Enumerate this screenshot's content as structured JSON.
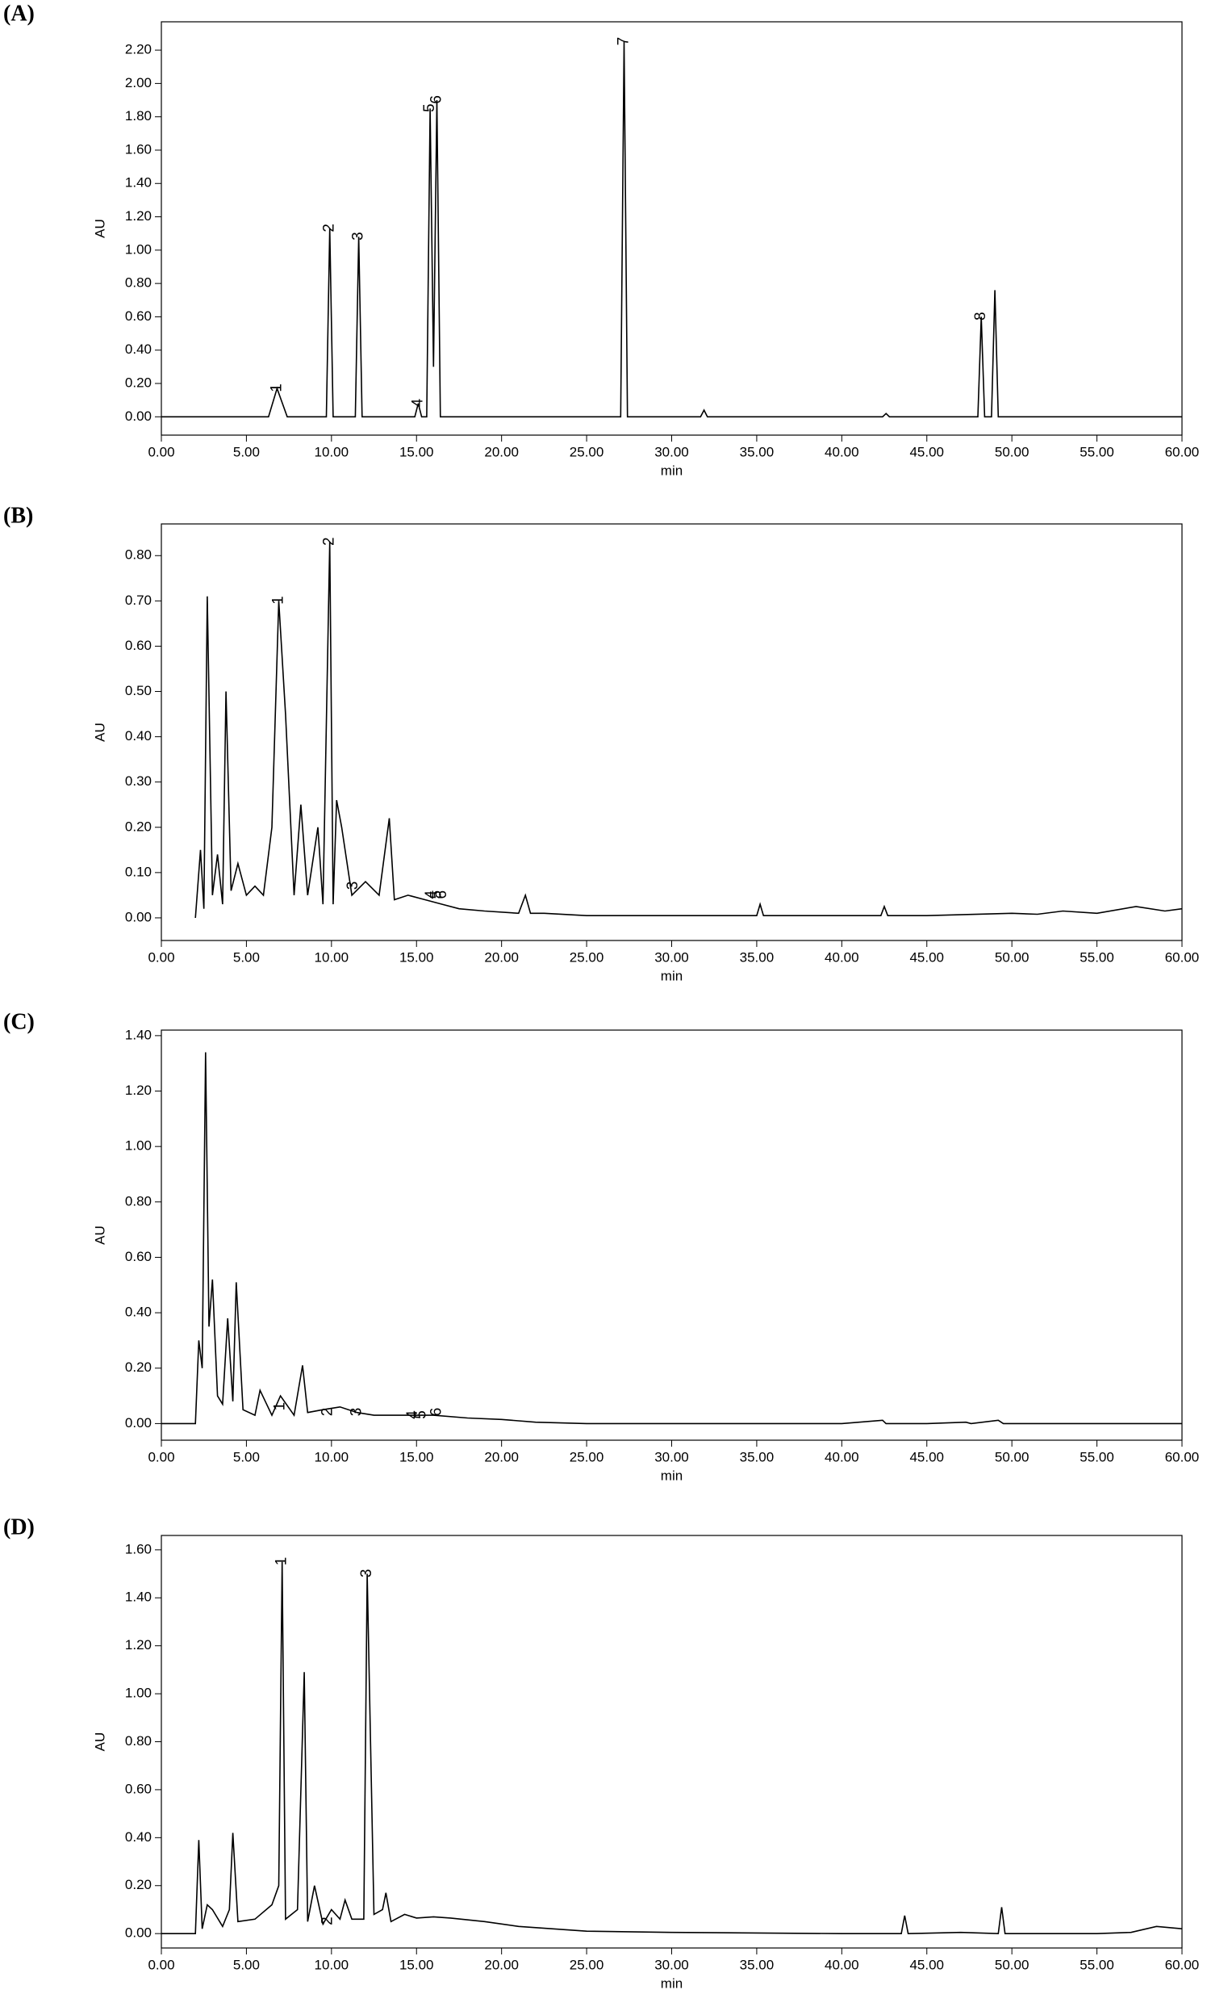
{
  "chart_data": [
    {
      "type": "line",
      "panel_label": "(A)",
      "x_label": "min",
      "y_label": "AU",
      "color": "#000000",
      "xlim": [
        0,
        60
      ],
      "ylim": [
        -0.11,
        2.37
      ],
      "xticks": [
        {
          "value": 0,
          "label": "0.00"
        },
        {
          "value": 5,
          "label": "5.00"
        },
        {
          "value": 10,
          "label": "10.00"
        },
        {
          "value": 15,
          "label": "15.00"
        },
        {
          "value": 20,
          "label": "20.00"
        },
        {
          "value": 25,
          "label": "25.00"
        },
        {
          "value": 30,
          "label": "30.00"
        },
        {
          "value": 35,
          "label": "35.00"
        },
        {
          "value": 40,
          "label": "40.00"
        },
        {
          "value": 45,
          "label": "45.00"
        },
        {
          "value": 50,
          "label": "50.00"
        },
        {
          "value": 55,
          "label": "55.00"
        },
        {
          "value": 60,
          "label": "60.00"
        }
      ],
      "yticks": [
        {
          "value": 0,
          "label": "0.00"
        },
        {
          "value": 0.2,
          "label": "0.20"
        },
        {
          "value": 0.4,
          "label": "0.40"
        },
        {
          "value": 0.6,
          "label": "0.60"
        },
        {
          "value": 0.8,
          "label": "0.80"
        },
        {
          "value": 1,
          "label": "1.00"
        },
        {
          "value": 1.2,
          "label": "1.20"
        },
        {
          "value": 1.4,
          "label": "1.40"
        },
        {
          "value": 1.6,
          "label": "1.60"
        },
        {
          "value": 1.8,
          "label": "1.80"
        },
        {
          "value": 2,
          "label": "2.00"
        },
        {
          "value": 2.2,
          "label": "2.20"
        }
      ],
      "x": [
        0,
        6.3,
        6.8,
        7.4,
        9.7,
        9.9,
        10.1,
        11.4,
        11.6,
        11.8,
        14.9,
        15.1,
        15.3,
        15.6,
        15.8,
        16.0,
        16.2,
        16.4,
        27.0,
        27.2,
        27.4,
        31.7,
        31.9,
        32.1,
        42.4,
        42.6,
        42.8,
        48.0,
        48.2,
        48.4,
        48.8,
        49.0,
        49.2,
        60
      ],
      "values": [
        0,
        0,
        0.17,
        0,
        0,
        1.13,
        0,
        0,
        1.08,
        0,
        0,
        0.08,
        0,
        0,
        1.85,
        0.3,
        1.9,
        0,
        0,
        2.25,
        0,
        0,
        0.04,
        0,
        0,
        0.02,
        0,
        0,
        0.6,
        0,
        0,
        0.76,
        0,
        0
      ],
      "peaks": [
        {
          "label": "1",
          "x": 6.8,
          "y": 0.17
        },
        {
          "label": "2",
          "x": 9.9,
          "y": 1.13
        },
        {
          "label": "3",
          "x": 11.6,
          "y": 1.08
        },
        {
          "label": "4",
          "x": 15.1,
          "y": 0.08
        },
        {
          "label": "5",
          "x": 15.8,
          "y": 1.85
        },
        {
          "label": "6",
          "x": 16.2,
          "y": 1.9
        },
        {
          "label": "7",
          "x": 27.2,
          "y": 2.25
        },
        {
          "label": "8",
          "x": 48.2,
          "y": 0.6
        }
      ]
    },
    {
      "type": "line",
      "panel_label": "(B)",
      "x_label": "min",
      "y_label": "AU",
      "color": "#000000",
      "xlim": [
        0,
        60
      ],
      "ylim": [
        -0.05,
        0.87
      ],
      "xticks": [
        {
          "value": 0,
          "label": "0.00"
        },
        {
          "value": 5,
          "label": "5.00"
        },
        {
          "value": 10,
          "label": "10.00"
        },
        {
          "value": 15,
          "label": "15.00"
        },
        {
          "value": 20,
          "label": "20.00"
        },
        {
          "value": 25,
          "label": "25.00"
        },
        {
          "value": 30,
          "label": "30.00"
        },
        {
          "value": 35,
          "label": "35.00"
        },
        {
          "value": 40,
          "label": "40.00"
        },
        {
          "value": 45,
          "label": "45.00"
        },
        {
          "value": 50,
          "label": "50.00"
        },
        {
          "value": 55,
          "label": "55.00"
        },
        {
          "value": 60,
          "label": "60.00"
        }
      ],
      "yticks": [
        {
          "value": 0,
          "label": "0.00"
        },
        {
          "value": 0.1,
          "label": "0.10"
        },
        {
          "value": 0.2,
          "label": "0.20"
        },
        {
          "value": 0.3,
          "label": "0.30"
        },
        {
          "value": 0.4,
          "label": "0.40"
        },
        {
          "value": 0.5,
          "label": "0.50"
        },
        {
          "value": 0.6,
          "label": "0.60"
        },
        {
          "value": 0.7,
          "label": "0.70"
        },
        {
          "value": 0.8,
          "label": "0.80"
        }
      ],
      "x": [
        2,
        2.3,
        2.5,
        2.7,
        3.0,
        3.3,
        3.6,
        3.8,
        4.1,
        4.5,
        5.0,
        5.5,
        6.0,
        6.5,
        6.9,
        7.3,
        7.8,
        8.2,
        8.6,
        9.2,
        9.5,
        9.9,
        10.1,
        10.3,
        10.6,
        11.2,
        12.0,
        12.8,
        13.4,
        13.7,
        14.5,
        15.5,
        16.5,
        17.5,
        19,
        21,
        21.4,
        21.7,
        22.5,
        25,
        30,
        35,
        35.2,
        35.4,
        39,
        42.3,
        42.5,
        42.7,
        45,
        50,
        51.5,
        53,
        55,
        57.3,
        59,
        60
      ],
      "values": [
        0,
        0.15,
        0.02,
        0.71,
        0.05,
        0.14,
        0.03,
        0.5,
        0.06,
        0.12,
        0.05,
        0.07,
        0.05,
        0.2,
        0.7,
        0.45,
        0.05,
        0.25,
        0.05,
        0.2,
        0.03,
        0.83,
        0.03,
        0.26,
        0.2,
        0.05,
        0.08,
        0.05,
        0.22,
        0.04,
        0.05,
        0.04,
        0.03,
        0.02,
        0.015,
        0.01,
        0.05,
        0.01,
        0.01,
        0.005,
        0.005,
        0.005,
        0.03,
        0.005,
        0.005,
        0.005,
        0.025,
        0.005,
        0.005,
        0.01,
        0.008,
        0.015,
        0.01,
        0.025,
        0.015,
        0.02
      ],
      "peaks": [
        {
          "label": "1",
          "x": 6.9,
          "y": 0.7
        },
        {
          "label": "2",
          "x": 9.9,
          "y": 0.83
        },
        {
          "label": "3",
          "x": 11.3,
          "y": 0.07
        },
        {
          "label": "4",
          "x": 15.9,
          "y": 0.05
        },
        {
          "label": "5",
          "x": 16.2,
          "y": 0.05
        },
        {
          "label": "6",
          "x": 16.5,
          "y": 0.05
        }
      ]
    },
    {
      "type": "line",
      "panel_label": "(C)",
      "x_label": "min",
      "y_label": "AU",
      "color": "#000000",
      "xlim": [
        0,
        60
      ],
      "ylim": [
        -0.06,
        1.42
      ],
      "xticks": [
        {
          "value": 0,
          "label": "0.00"
        },
        {
          "value": 5,
          "label": "5.00"
        },
        {
          "value": 10,
          "label": "10.00"
        },
        {
          "value": 15,
          "label": "15.00"
        },
        {
          "value": 20,
          "label": "20.00"
        },
        {
          "value": 25,
          "label": "25.00"
        },
        {
          "value": 30,
          "label": "30.00"
        },
        {
          "value": 35,
          "label": "35.00"
        },
        {
          "value": 40,
          "label": "40.00"
        },
        {
          "value": 45,
          "label": "45.00"
        },
        {
          "value": 50,
          "label": "50.00"
        },
        {
          "value": 55,
          "label": "55.00"
        },
        {
          "value": 60,
          "label": "60.00"
        }
      ],
      "yticks": [
        {
          "value": 0,
          "label": "0.00"
        },
        {
          "value": 0.2,
          "label": "0.20"
        },
        {
          "value": 0.4,
          "label": "0.40"
        },
        {
          "value": 0.6,
          "label": "0.60"
        },
        {
          "value": 0.8,
          "label": "0.80"
        },
        {
          "value": 1,
          "label": "1.00"
        },
        {
          "value": 1.2,
          "label": "1.20"
        },
        {
          "value": 1.4,
          "label": "1.40"
        }
      ],
      "x": [
        0,
        2.0,
        2.2,
        2.4,
        2.6,
        2.8,
        3.0,
        3.3,
        3.6,
        3.9,
        4.2,
        4.4,
        4.8,
        5.5,
        5.8,
        6.5,
        7.0,
        7.8,
        8.3,
        8.6,
        9.5,
        10.5,
        11.5,
        12.5,
        14,
        16,
        18,
        20,
        22,
        25,
        30,
        40,
        42.4,
        42.6,
        45,
        47.3,
        47.6,
        49.2,
        49.5,
        50,
        55,
        60
      ],
      "values": [
        0,
        0,
        0.3,
        0.2,
        1.34,
        0.35,
        0.52,
        0.1,
        0.07,
        0.38,
        0.08,
        0.51,
        0.05,
        0.03,
        0.12,
        0.03,
        0.1,
        0.03,
        0.21,
        0.04,
        0.05,
        0.06,
        0.04,
        0.03,
        0.03,
        0.03,
        0.02,
        0.015,
        0.005,
        0,
        0,
        0,
        0.012,
        0,
        0,
        0.005,
        0,
        0.012,
        0,
        0,
        0,
        0
      ],
      "peaks": [
        {
          "label": "1",
          "x": 7.0,
          "y": 0.06
        },
        {
          "label": "2",
          "x": 9.8,
          "y": 0.04
        },
        {
          "label": "3",
          "x": 11.5,
          "y": 0.04
        },
        {
          "label": "4",
          "x": 14.8,
          "y": 0.03
        },
        {
          "label": "5",
          "x": 15.3,
          "y": 0.03
        },
        {
          "label": "6",
          "x": 16.2,
          "y": 0.04
        }
      ]
    },
    {
      "type": "line",
      "panel_label": "(D)",
      "x_label": "min",
      "y_label": "AU",
      "color": "#000000",
      "xlim": [
        0,
        60
      ],
      "ylim": [
        -0.06,
        1.66
      ],
      "xticks": [
        {
          "value": 0,
          "label": "0.00"
        },
        {
          "value": 5,
          "label": "5.00"
        },
        {
          "value": 10,
          "label": "10.00"
        },
        {
          "value": 15,
          "label": "15.00"
        },
        {
          "value": 20,
          "label": "20.00"
        },
        {
          "value": 25,
          "label": "25.00"
        },
        {
          "value": 30,
          "label": "30.00"
        },
        {
          "value": 35,
          "label": "35.00"
        },
        {
          "value": 40,
          "label": "40.00"
        },
        {
          "value": 45,
          "label": "45.00"
        },
        {
          "value": 50,
          "label": "50.00"
        },
        {
          "value": 55,
          "label": "55.00"
        },
        {
          "value": 60,
          "label": "60.00"
        }
      ],
      "yticks": [
        {
          "value": 0,
          "label": "0.00"
        },
        {
          "value": 0.2,
          "label": "0.20"
        },
        {
          "value": 0.4,
          "label": "0.40"
        },
        {
          "value": 0.6,
          "label": "0.60"
        },
        {
          "value": 0.8,
          "label": "0.80"
        },
        {
          "value": 1,
          "label": "1.00"
        },
        {
          "value": 1.2,
          "label": "1.20"
        },
        {
          "value": 1.4,
          "label": "1.40"
        },
        {
          "value": 1.6,
          "label": "1.60"
        }
      ],
      "x": [
        0,
        2.0,
        2.2,
        2.4,
        2.7,
        3.0,
        3.6,
        4.0,
        4.2,
        4.5,
        5.5,
        6.5,
        6.9,
        7.1,
        7.3,
        8.0,
        8.4,
        8.6,
        9.0,
        9.5,
        10.0,
        10.5,
        10.8,
        11.2,
        11.9,
        12.1,
        12.5,
        13.0,
        13.2,
        13.5,
        14.3,
        15,
        16,
        17,
        19,
        21,
        25,
        30,
        40,
        43.5,
        43.7,
        43.9,
        47,
        49.2,
        49.4,
        49.6,
        52,
        55,
        57,
        58.5,
        60
      ],
      "values": [
        0,
        0,
        0.39,
        0.02,
        0.12,
        0.1,
        0.03,
        0.1,
        0.42,
        0.05,
        0.06,
        0.12,
        0.2,
        1.55,
        0.06,
        0.1,
        1.09,
        0.05,
        0.2,
        0.04,
        0.1,
        0.06,
        0.14,
        0.06,
        0.06,
        1.5,
        0.08,
        0.1,
        0.17,
        0.05,
        0.08,
        0.065,
        0.07,
        0.065,
        0.05,
        0.03,
        0.01,
        0.005,
        0,
        0,
        0.075,
        0,
        0.005,
        0,
        0.11,
        0,
        0,
        0,
        0.005,
        0.03,
        0.02
      ],
      "peaks": [
        {
          "label": "1",
          "x": 7.1,
          "y": 1.55
        },
        {
          "label": "2",
          "x": 9.8,
          "y": 0.05
        },
        {
          "label": "3",
          "x": 12.1,
          "y": 1.5
        }
      ]
    }
  ]
}
